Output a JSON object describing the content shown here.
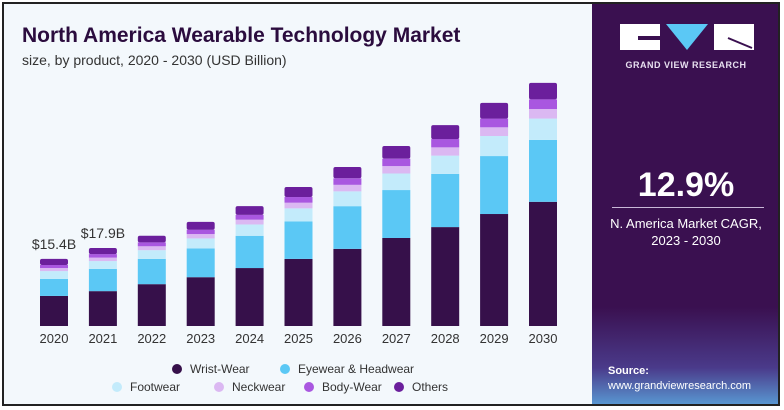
{
  "chart_data": {
    "type": "bar",
    "stacked": true,
    "title": "North America Wearable Technology Market",
    "subtitle": "size, by product, 2020 - 2030 (USD Billion)",
    "categories": [
      "2020",
      "2021",
      "2022",
      "2023",
      "2024",
      "2025",
      "2026",
      "2027",
      "2028",
      "2029",
      "2030"
    ],
    "series": [
      {
        "name": "Wrist-Wear",
        "color": "#36104a",
        "values": [
          6.9,
          8.0,
          9.6,
          11.2,
          13.3,
          15.4,
          17.7,
          20.2,
          22.7,
          25.7,
          28.5
        ]
      },
      {
        "name": "Eyewear & Headwear",
        "color": "#5bc8f5",
        "values": [
          3.9,
          5.1,
          5.8,
          6.6,
          7.4,
          8.6,
          9.8,
          11.0,
          12.2,
          13.3,
          14.2
        ]
      },
      {
        "name": "Footwear",
        "color": "#c3ebfb",
        "values": [
          1.8,
          1.8,
          2.0,
          2.3,
          2.6,
          3.0,
          3.4,
          3.8,
          4.2,
          4.6,
          4.9
        ]
      },
      {
        "name": "Neckwear",
        "color": "#dbb8f2",
        "values": [
          0.7,
          0.8,
          0.9,
          1.0,
          1.1,
          1.3,
          1.5,
          1.7,
          1.9,
          2.0,
          2.2
        ]
      },
      {
        "name": "Body-Wear",
        "color": "#a957e0",
        "values": [
          0.7,
          0.8,
          0.9,
          1.0,
          1.1,
          1.3,
          1.5,
          1.7,
          1.9,
          2.0,
          2.2
        ]
      },
      {
        "name": "Others",
        "color": "#6b1f9c",
        "values": [
          1.4,
          1.4,
          1.5,
          1.8,
          2.0,
          2.3,
          2.6,
          2.9,
          3.2,
          3.6,
          3.8
        ]
      }
    ],
    "data_labels": [
      {
        "category": "2020",
        "text": "$15.4B"
      },
      {
        "category": "2021",
        "text": "$17.9B"
      }
    ],
    "ylim": [
      0,
      60
    ],
    "grid": false,
    "legend_placement": "bottom"
  },
  "panel": {
    "brand": "GRAND VIEW RESEARCH",
    "cagr_value": "12.9%",
    "cagr_label_line1": "N. America Market CAGR,",
    "cagr_label_line2": "2023 - 2030",
    "source_label": "Source:",
    "source_url": "www.grandviewresearch.com",
    "background_color": "#3a1050"
  }
}
